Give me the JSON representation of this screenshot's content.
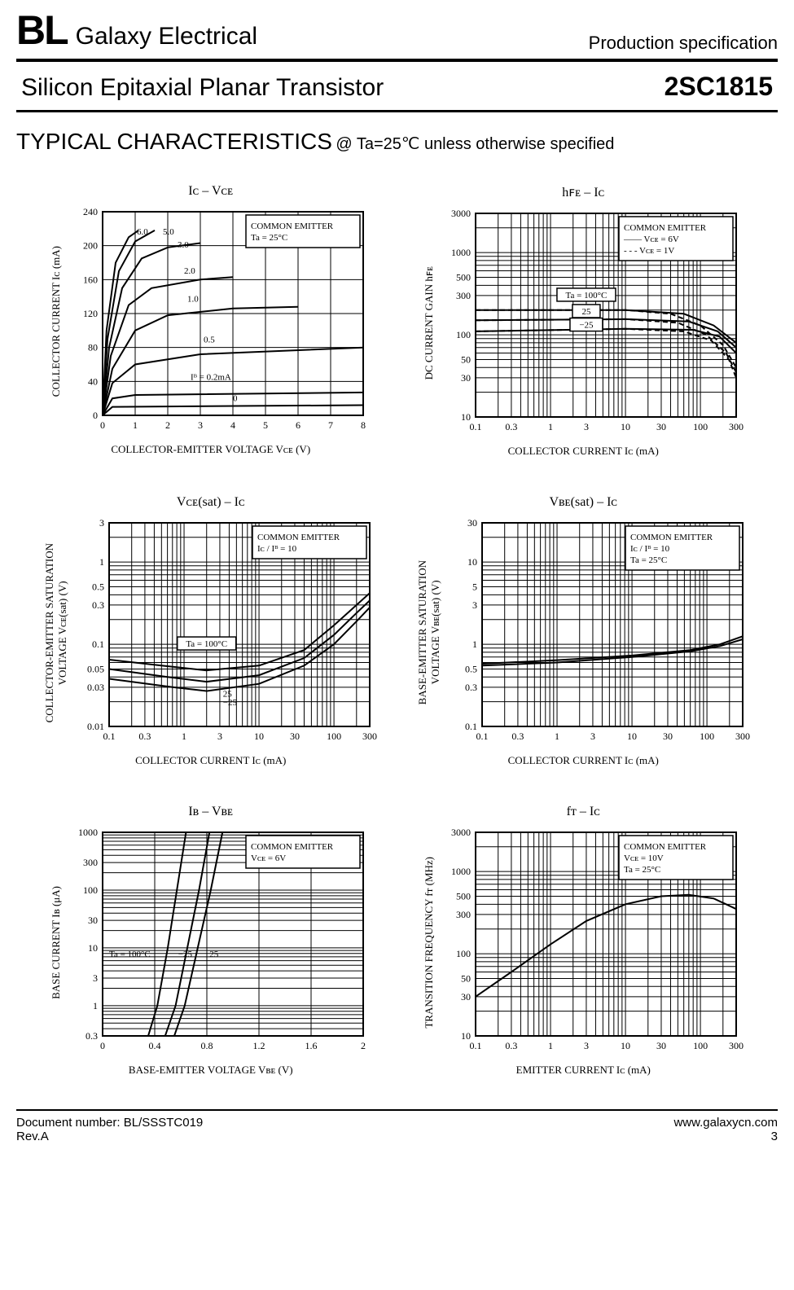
{
  "header": {
    "brand_short": "BL",
    "brand_full": "Galaxy Electrical",
    "doc_type": "Production specification"
  },
  "title": {
    "product_desc": "Silicon Epitaxial Planar Transistor",
    "part_number": "2SC1815"
  },
  "section": {
    "heading": "TYPICAL CHARACTERISTICS",
    "condition": "@ Ta=25℃ unless otherwise specified"
  },
  "charts": {
    "ic_vce": {
      "title": "Iᴄ  –  Vᴄᴇ",
      "xlabel": "COLLECTOR-EMITTER VOLTAGE   Vᴄᴇ   (V)",
      "ylabel": "COLLECTOR CURRENT   Iᴄ   (mA)",
      "legend": [
        "COMMON EMITTER",
        "Ta = 25°C"
      ],
      "xscale": "linear",
      "yscale": "linear",
      "xlim": [
        0,
        8
      ],
      "ylim": [
        0,
        240
      ],
      "xticks": [
        0,
        1,
        2,
        3,
        4,
        5,
        6,
        7,
        8
      ],
      "yticks": [
        0,
        40,
        80,
        120,
        160,
        200,
        240
      ],
      "curve_labels": [
        "6.0",
        "5.0",
        "3.0",
        "2.0",
        "1.0",
        "0.5",
        "Iᴮ = 0.2mA",
        "0"
      ],
      "series": [
        {
          "ib": "0",
          "pts": [
            [
              0,
              0
            ],
            [
              0.3,
              10
            ],
            [
              8,
              12
            ]
          ]
        },
        {
          "ib": "0.2",
          "pts": [
            [
              0,
              0
            ],
            [
              0.3,
              20
            ],
            [
              1,
              24
            ],
            [
              8,
              27
            ]
          ]
        },
        {
          "ib": "0.5",
          "pts": [
            [
              0,
              0
            ],
            [
              0.3,
              38
            ],
            [
              1,
              60
            ],
            [
              3,
              72
            ],
            [
              8,
              80
            ]
          ]
        },
        {
          "ib": "1.0",
          "pts": [
            [
              0,
              0
            ],
            [
              0.3,
              55
            ],
            [
              1,
              100
            ],
            [
              2,
              118
            ],
            [
              4,
              126
            ],
            [
              6,
              128
            ]
          ]
        },
        {
          "ib": "2.0",
          "pts": [
            [
              0,
              0
            ],
            [
              0.25,
              70
            ],
            [
              0.8,
              130
            ],
            [
              1.5,
              150
            ],
            [
              3,
              160
            ],
            [
              4,
              163
            ]
          ]
        },
        {
          "ib": "3.0",
          "pts": [
            [
              0,
              0
            ],
            [
              0.2,
              80
            ],
            [
              0.6,
              150
            ],
            [
              1.2,
              185
            ],
            [
              2,
              198
            ],
            [
              3,
              203
            ]
          ]
        },
        {
          "ib": "5.0",
          "pts": [
            [
              0,
              0
            ],
            [
              0.15,
              90
            ],
            [
              0.5,
              170
            ],
            [
              1,
              205
            ],
            [
              1.6,
              218
            ]
          ]
        },
        {
          "ib": "6.0",
          "pts": [
            [
              0,
              0
            ],
            [
              0.12,
              100
            ],
            [
              0.4,
              180
            ],
            [
              0.8,
              210
            ],
            [
              1.1,
              218
            ]
          ]
        }
      ],
      "background": "#ffffff",
      "grid_color": "#000000",
      "curve_color": "#000000"
    },
    "hfe_ic": {
      "title": "hꜰᴇ  –  Iᴄ",
      "xlabel": "COLLECTOR CURRENT   Iᴄ   (mA)",
      "ylabel": "DC CURRENT GAIN   hꜰᴇ",
      "legend": [
        "COMMON EMITTER",
        "——  Vᴄᴇ = 6V",
        "- - -  Vᴄᴇ = 1V"
      ],
      "xscale": "log",
      "yscale": "log",
      "xlim": [
        0.1,
        300
      ],
      "ylim": [
        10,
        3000
      ],
      "xticks": [
        0.1,
        0.3,
        1,
        3,
        10,
        30,
        100,
        300
      ],
      "yticks": [
        10,
        30,
        50,
        100,
        300,
        500,
        1000,
        3000
      ],
      "curve_labels": [
        "Ta = 100°C",
        "25",
        "−25"
      ],
      "series_solid": [
        {
          "t": "100",
          "pts": [
            [
              0.1,
              200
            ],
            [
              10,
              200
            ],
            [
              60,
              180
            ],
            [
              150,
              130
            ],
            [
              300,
              80
            ]
          ]
        },
        {
          "t": "25",
          "pts": [
            [
              0.1,
              150
            ],
            [
              10,
              155
            ],
            [
              70,
              145
            ],
            [
              170,
              110
            ],
            [
              300,
              70
            ]
          ]
        },
        {
          "t": "-25",
          "pts": [
            [
              0.1,
              110
            ],
            [
              10,
              118
            ],
            [
              80,
              115
            ],
            [
              180,
              95
            ],
            [
              300,
              60
            ]
          ]
        }
      ],
      "series_dashed": [
        {
          "t": "100",
          "pts": [
            [
              0.1,
              200
            ],
            [
              10,
              200
            ],
            [
              40,
              180
            ],
            [
              100,
              130
            ],
            [
              200,
              75
            ],
            [
              300,
              40
            ]
          ]
        },
        {
          "t": "25",
          "pts": [
            [
              0.1,
              150
            ],
            [
              10,
              155
            ],
            [
              50,
              140
            ],
            [
              120,
              100
            ],
            [
              220,
              60
            ],
            [
              300,
              35
            ]
          ]
        },
        {
          "t": "-25",
          "pts": [
            [
              0.1,
              110
            ],
            [
              10,
              118
            ],
            [
              60,
              110
            ],
            [
              140,
              85
            ],
            [
              240,
              50
            ],
            [
              300,
              30
            ]
          ]
        }
      ],
      "background": "#ffffff"
    },
    "vcesat_ic": {
      "title": "Vᴄᴇ(sat)  –  Iᴄ",
      "xlabel": "COLLECTOR CURRENT   Iᴄ   (mA)",
      "ylabel": "COLLECTOR-EMITTER SATURATION\nVOLTAGE   Vᴄᴇ(sat)   (V)",
      "legend": [
        "COMMON EMITTER",
        "Iᴄ / Iᴮ = 10"
      ],
      "xscale": "log",
      "yscale": "log",
      "xlim": [
        0.1,
        300
      ],
      "ylim": [
        0.01,
        3
      ],
      "xticks": [
        0.1,
        0.3,
        1,
        3,
        10,
        30,
        100,
        300
      ],
      "yticks": [
        0.01,
        0.03,
        0.05,
        0.1,
        0.3,
        0.5,
        1,
        3
      ],
      "curve_labels": [
        "Ta = 100°C",
        "25",
        "−25"
      ],
      "series": [
        {
          "t": "-25",
          "pts": [
            [
              0.1,
              0.065
            ],
            [
              0.5,
              0.055
            ],
            [
              2,
              0.048
            ],
            [
              10,
              0.055
            ],
            [
              40,
              0.085
            ],
            [
              100,
              0.17
            ],
            [
              200,
              0.3
            ],
            [
              300,
              0.42
            ]
          ]
        },
        {
          "t": "25",
          "pts": [
            [
              0.1,
              0.05
            ],
            [
              0.6,
              0.04
            ],
            [
              2,
              0.035
            ],
            [
              10,
              0.042
            ],
            [
              40,
              0.068
            ],
            [
              100,
              0.13
            ],
            [
              200,
              0.24
            ],
            [
              300,
              0.34
            ]
          ]
        },
        {
          "t": "100",
          "pts": [
            [
              0.1,
              0.038
            ],
            [
              0.7,
              0.03
            ],
            [
              2,
              0.027
            ],
            [
              10,
              0.033
            ],
            [
              40,
              0.055
            ],
            [
              100,
              0.1
            ],
            [
              200,
              0.19
            ],
            [
              300,
              0.28
            ]
          ]
        }
      ],
      "background": "#ffffff"
    },
    "vbesat_ic": {
      "title": "Vʙᴇ(sat)  –  Iᴄ",
      "xlabel": "COLLECTOR CURRENT   Iᴄ   (mA)",
      "ylabel": "BASE-EMITTER SATURATION\nVOLTAGE   Vʙᴇ(sat)   (V)",
      "legend": [
        "COMMON EMITTER",
        "Iᴄ / Iᴮ = 10",
        "Ta = 25°C"
      ],
      "xscale": "log",
      "yscale": "log",
      "xlim": [
        0.1,
        300
      ],
      "ylim": [
        0.1,
        30
      ],
      "xticks": [
        0.1,
        0.3,
        1,
        3,
        10,
        30,
        100,
        300
      ],
      "yticks": [
        0.1,
        0.3,
        0.5,
        1,
        3,
        5,
        10,
        30
      ],
      "series": [
        {
          "pts": [
            [
              0.1,
              0.58
            ],
            [
              1,
              0.64
            ],
            [
              10,
              0.73
            ],
            [
              60,
              0.85
            ],
            [
              150,
              1.0
            ],
            [
              300,
              1.25
            ]
          ]
        },
        {
          "pts": [
            [
              0.1,
              0.55
            ],
            [
              1,
              0.6
            ],
            [
              10,
              0.7
            ],
            [
              60,
              0.82
            ],
            [
              150,
              0.95
            ],
            [
              300,
              1.15
            ]
          ]
        }
      ],
      "background": "#ffffff"
    },
    "ib_vbe": {
      "title": "Iʙ  –  Vʙᴇ",
      "xlabel": "BASE-EMITTER VOLTAGE   Vʙᴇ   (V)",
      "ylabel": "BASE CURRENT   Iʙ   (μA)",
      "legend": [
        "COMMON EMITTER",
        "Vᴄᴇ = 6V"
      ],
      "xscale": "linear",
      "yscale": "log",
      "xlim": [
        0,
        2.0
      ],
      "ylim": [
        0.3,
        1000
      ],
      "xticks": [
        0,
        0.4,
        0.8,
        1.2,
        1.6,
        2.0
      ],
      "yticks": [
        0.3,
        1,
        3,
        10,
        30,
        100,
        300,
        1000
      ],
      "curve_labels": [
        "Ta = 100°C",
        "−25",
        "25"
      ],
      "series": [
        {
          "t": "100",
          "pts": [
            [
              0.35,
              0.3
            ],
            [
              0.42,
              1
            ],
            [
              0.5,
              10
            ],
            [
              0.57,
              100
            ],
            [
              0.64,
              1000
            ]
          ]
        },
        {
          "t": "25",
          "pts": [
            [
              0.48,
              0.3
            ],
            [
              0.56,
              1
            ],
            [
              0.65,
              10
            ],
            [
              0.74,
              100
            ],
            [
              0.82,
              1000
            ]
          ]
        },
        {
          "t": "-25",
          "pts": [
            [
              0.55,
              0.3
            ],
            [
              0.63,
              1
            ],
            [
              0.73,
              10
            ],
            [
              0.83,
              100
            ],
            [
              0.92,
              1000
            ]
          ]
        }
      ],
      "background": "#ffffff"
    },
    "ft_ic": {
      "title": "fᴛ  –  Iᴄ",
      "xlabel": "EMITTER CURRENT   Iᴄ   (mA)",
      "ylabel": "TRANSITION FREQUENCY   fᴛ   (MHz)",
      "legend": [
        "COMMON EMITTER",
        "Vᴄᴇ = 10V",
        "Ta = 25°C"
      ],
      "xscale": "log",
      "yscale": "log",
      "xlim": [
        0.1,
        300
      ],
      "ylim": [
        10,
        3000
      ],
      "xticks": [
        0.1,
        0.3,
        1,
        3,
        10,
        30,
        100,
        300
      ],
      "yticks": [
        10,
        30,
        50,
        100,
        300,
        500,
        1000,
        3000
      ],
      "series": [
        {
          "pts": [
            [
              0.1,
              30
            ],
            [
              0.3,
              60
            ],
            [
              1,
              130
            ],
            [
              3,
              250
            ],
            [
              10,
              400
            ],
            [
              30,
              500
            ],
            [
              70,
              520
            ],
            [
              150,
              470
            ],
            [
              300,
              350
            ]
          ]
        }
      ],
      "background": "#ffffff"
    }
  },
  "footer": {
    "doc_number": "Document number: BL/SSSTC019",
    "revision": "Rev.A",
    "website": "www.galaxycn.com",
    "page": "3"
  }
}
